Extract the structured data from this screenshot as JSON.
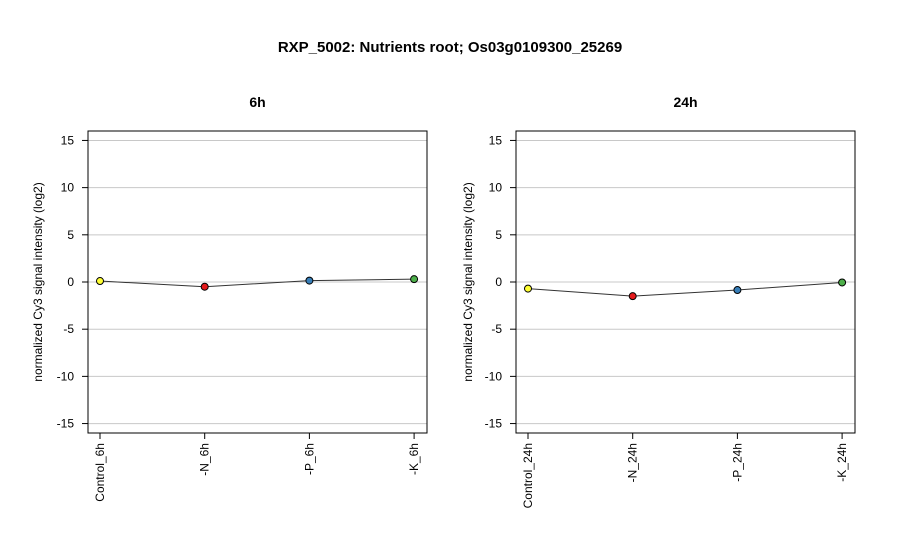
{
  "title": "RXP_5002: Nutrients root; Os03g0109300_25269",
  "colors": {
    "control": "#ffff33",
    "N": "#e41a1c",
    "P": "#377eb8",
    "K": "#4daf4a",
    "line": "#333333",
    "grid": "#c8c8c8"
  },
  "chart_data": [
    {
      "type": "line",
      "title": "6h",
      "ylabel": "normalized Cy3 signal intensity (log2)",
      "ylim": [
        -16,
        16
      ],
      "yticks": [
        "15",
        "10",
        "5",
        "0",
        "-5",
        "-10",
        "-15"
      ],
      "ytick_values": [
        15,
        10,
        5,
        0,
        -5,
        -10,
        -15
      ],
      "grid": true,
      "categories": [
        "Control_6h",
        "-N_6h",
        "-P_6h",
        "-K_6h"
      ],
      "values": [
        0.1,
        -0.5,
        0.15,
        0.3
      ],
      "point_colors": [
        "#ffff33",
        "#e41a1c",
        "#377eb8",
        "#4daf4a"
      ]
    },
    {
      "type": "line",
      "title": "24h",
      "ylabel": "normalized Cy3 signal intensity (log2)",
      "ylim": [
        -16,
        16
      ],
      "yticks": [
        "15",
        "10",
        "5",
        "0",
        "-5",
        "-10",
        "-15"
      ],
      "ytick_values": [
        15,
        10,
        5,
        0,
        -5,
        -10,
        -15
      ],
      "grid": true,
      "categories": [
        "Control_24h",
        "-N_24h",
        "-P_24h",
        "-K_24h"
      ],
      "values": [
        -0.7,
        -1.5,
        -0.85,
        -0.05
      ],
      "point_colors": [
        "#ffff33",
        "#e41a1c",
        "#377eb8",
        "#4daf4a"
      ]
    }
  ]
}
